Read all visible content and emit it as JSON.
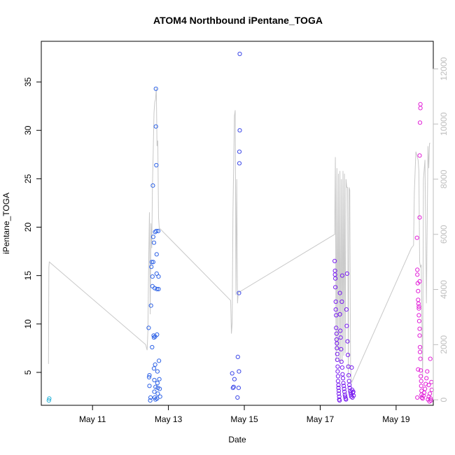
{
  "chart_data": {
    "type": "scatter",
    "title": "ATOM4 Northbound iPentane_TOGA",
    "xlabel": "Date",
    "ylabel": "iPentane_TOGA",
    "x_ticks": [
      {
        "day": 11,
        "label": "May 11"
      },
      {
        "day": 13,
        "label": "May 13"
      },
      {
        "day": 15,
        "label": "May 15"
      },
      {
        "day": 17,
        "label": "May 17"
      },
      {
        "day": 19,
        "label": "May 19"
      }
    ],
    "xlim": [
      9.65,
      19.98
    ],
    "ylim": [
      1.6,
      39.2
    ],
    "y_ticks": [
      5,
      10,
      15,
      20,
      25,
      30,
      35
    ],
    "y2lim": [
      -200,
      13000
    ],
    "y2_ticks": [
      0,
      2000,
      4000,
      6000,
      8000,
      10000,
      12000
    ],
    "y2_color": "#bebebe",
    "grid": false,
    "legend": "none",
    "series": [
      {
        "color": "#29b3d9",
        "points": [
          [
            9.85,
            2.1
          ],
          [
            9.86,
            2.3
          ]
        ]
      },
      {
        "color": "#2f63e6",
        "points": [
          [
            12.48,
            9.6
          ],
          [
            12.49,
            4.5
          ],
          [
            12.5,
            4.7
          ],
          [
            12.5,
            3.6
          ],
          [
            12.52,
            2.1
          ],
          [
            12.53,
            2.4
          ],
          [
            12.54,
            11.9
          ],
          [
            12.55,
            15.9
          ],
          [
            12.56,
            16.4
          ],
          [
            12.57,
            7.6
          ],
          [
            12.58,
            14.9
          ],
          [
            12.58,
            13.9
          ],
          [
            12.59,
            24.3
          ],
          [
            12.6,
            19.0
          ],
          [
            12.6,
            16.4
          ],
          [
            12.61,
            8.8
          ],
          [
            12.62,
            8.6
          ],
          [
            12.62,
            5.4
          ],
          [
            12.63,
            4.2
          ],
          [
            12.63,
            3.0
          ],
          [
            12.64,
            2.4
          ],
          [
            12.64,
            13.7
          ],
          [
            12.65,
            19.5
          ],
          [
            12.65,
            5.8
          ],
          [
            12.66,
            3.5
          ],
          [
            12.66,
            2.2
          ],
          [
            12.67,
            34.3
          ],
          [
            12.67,
            30.4
          ],
          [
            12.68,
            26.4
          ],
          [
            12.68,
            19.6
          ],
          [
            12.69,
            17.2
          ],
          [
            12.69,
            15.2
          ],
          [
            12.7,
            13.6
          ],
          [
            12.7,
            8.9
          ],
          [
            12.71,
            5.1
          ],
          [
            12.71,
            3.9
          ],
          [
            12.72,
            3.4
          ],
          [
            12.72,
            2.8
          ],
          [
            12.73,
            19.6
          ],
          [
            12.74,
            14.9
          ],
          [
            12.74,
            13.6
          ],
          [
            12.75,
            6.2
          ],
          [
            12.76,
            4.3
          ],
          [
            12.77,
            3.3
          ],
          [
            12.78,
            2.5
          ],
          [
            12.62,
            18.4
          ],
          [
            12.65,
            8.7
          ],
          [
            12.7,
            2.3
          ]
        ]
      },
      {
        "color": "#3d49e8",
        "points": [
          [
            14.68,
            4.9
          ],
          [
            14.7,
            3.4
          ],
          [
            14.72,
            3.5
          ],
          [
            14.74,
            4.3
          ],
          [
            14.82,
            2.4
          ],
          [
            14.83,
            6.6
          ],
          [
            14.85,
            3.4
          ],
          [
            14.86,
            5.1
          ],
          [
            14.86,
            13.2
          ],
          [
            14.87,
            26.6
          ],
          [
            14.87,
            27.8
          ],
          [
            14.88,
            30.0
          ],
          [
            14.88,
            37.9
          ]
        ]
      },
      {
        "color": "#7a1ef0",
        "points": [
          [
            17.38,
            16.5
          ],
          [
            17.39,
            15.5
          ],
          [
            17.39,
            15.1
          ],
          [
            17.4,
            14.7
          ],
          [
            17.4,
            13.8
          ],
          [
            17.41,
            12.3
          ],
          [
            17.41,
            11.5
          ],
          [
            17.42,
            10.9
          ],
          [
            17.42,
            9.6
          ],
          [
            17.43,
            9.0
          ],
          [
            17.43,
            8.4
          ],
          [
            17.44,
            8.0
          ],
          [
            17.44,
            7.5
          ],
          [
            17.45,
            6.9
          ],
          [
            17.45,
            6.3
          ],
          [
            17.46,
            5.6
          ],
          [
            17.46,
            5.1
          ],
          [
            17.47,
            4.6
          ],
          [
            17.47,
            4.1
          ],
          [
            17.48,
            3.7
          ],
          [
            17.48,
            3.4
          ],
          [
            17.49,
            3.1
          ],
          [
            17.49,
            2.8
          ],
          [
            17.5,
            2.5
          ],
          [
            17.5,
            2.2
          ],
          [
            17.51,
            2.1
          ],
          [
            17.52,
            13.2
          ],
          [
            17.52,
            11.0
          ],
          [
            17.53,
            9.3
          ],
          [
            17.54,
            8.6
          ],
          [
            17.55,
            7.4
          ],
          [
            17.56,
            6.1
          ],
          [
            17.57,
            12.3
          ],
          [
            17.58,
            15.0
          ],
          [
            17.58,
            5.5
          ],
          [
            17.59,
            4.8
          ],
          [
            17.6,
            4.4
          ],
          [
            17.61,
            3.9
          ],
          [
            17.62,
            3.6
          ],
          [
            17.63,
            3.3
          ],
          [
            17.64,
            3.0
          ],
          [
            17.65,
            2.7
          ],
          [
            17.66,
            2.5
          ],
          [
            17.67,
            2.3
          ],
          [
            17.68,
            2.2
          ],
          [
            17.69,
            11.5
          ],
          [
            17.7,
            9.8
          ],
          [
            17.71,
            15.2
          ],
          [
            17.72,
            8.2
          ],
          [
            17.73,
            6.8
          ],
          [
            17.74,
            5.6
          ],
          [
            17.75,
            4.7
          ],
          [
            17.76,
            4.1
          ],
          [
            17.77,
            3.7
          ],
          [
            17.78,
            3.4
          ],
          [
            17.79,
            3.1
          ],
          [
            17.8,
            2.9
          ],
          [
            17.81,
            2.7
          ],
          [
            17.82,
            2.5
          ],
          [
            17.83,
            5.5
          ],
          [
            17.84,
            3.2
          ],
          [
            17.85,
            2.4
          ],
          [
            17.86,
            2.9
          ],
          [
            17.87,
            3.0
          ],
          [
            17.88,
            2.6
          ]
        ]
      },
      {
        "color": "#e221d8",
        "points": [
          [
            19.55,
            18.9
          ],
          [
            19.56,
            15.6
          ],
          [
            19.56,
            15.1
          ],
          [
            19.57,
            14.2
          ],
          [
            19.58,
            13.4
          ],
          [
            19.58,
            12.5
          ],
          [
            19.59,
            12.1
          ],
          [
            19.6,
            11.6
          ],
          [
            19.6,
            10.9
          ],
          [
            19.61,
            10.3
          ],
          [
            19.62,
            9.5
          ],
          [
            19.62,
            8.8
          ],
          [
            19.63,
            7.6
          ],
          [
            19.63,
            7.1
          ],
          [
            19.64,
            6.4
          ],
          [
            19.65,
            5.2
          ],
          [
            19.65,
            4.6
          ],
          [
            19.66,
            4.1
          ],
          [
            19.66,
            3.6
          ],
          [
            19.67,
            3.1
          ],
          [
            19.67,
            2.7
          ],
          [
            19.68,
            2.4
          ],
          [
            19.62,
            21.0
          ],
          [
            19.62,
            27.4
          ],
          [
            19.63,
            30.8
          ],
          [
            19.64,
            32.3
          ],
          [
            19.64,
            32.7
          ],
          [
            19.7,
            2.3
          ],
          [
            19.72,
            2.6
          ],
          [
            19.74,
            2.9
          ],
          [
            19.76,
            3.3
          ],
          [
            19.78,
            3.8
          ],
          [
            19.8,
            4.4
          ],
          [
            19.82,
            5.1
          ],
          [
            19.84,
            2.2
          ],
          [
            19.86,
            2.5
          ],
          [
            19.86,
            3.7
          ],
          [
            19.88,
            2.0
          ],
          [
            19.89,
            2.8
          ],
          [
            19.9,
            6.4
          ],
          [
            19.91,
            2.3
          ],
          [
            19.92,
            2.1
          ],
          [
            19.93,
            4.0
          ],
          [
            19.94,
            3.2
          ],
          [
            19.56,
            2.4
          ],
          [
            19.58,
            5.3
          ],
          [
            19.6,
            11.8
          ],
          [
            19.62,
            14.4
          ]
        ]
      }
    ],
    "altitude_line": {
      "color": "#c8c8c8",
      "axis": "right",
      "points": [
        [
          9.84,
          1300
        ],
        [
          9.85,
          4800
        ],
        [
          9.86,
          5000
        ],
        [
          12.4,
          2000
        ],
        [
          12.44,
          1800
        ],
        [
          12.46,
          2500
        ],
        [
          12.48,
          5000
        ],
        [
          12.5,
          6800
        ],
        [
          12.52,
          3100
        ],
        [
          12.54,
          6400
        ],
        [
          12.56,
          5500
        ],
        [
          12.58,
          7800
        ],
        [
          12.6,
          9000
        ],
        [
          12.62,
          10400
        ],
        [
          12.64,
          10800
        ],
        [
          12.66,
          10900
        ],
        [
          12.68,
          11300
        ],
        [
          12.7,
          9200
        ],
        [
          12.72,
          9400
        ],
        [
          12.74,
          6600
        ],
        [
          12.76,
          6200
        ],
        [
          12.78,
          6200
        ],
        [
          14.64,
          3600
        ],
        [
          14.66,
          2400
        ],
        [
          14.68,
          2800
        ],
        [
          14.7,
          6800
        ],
        [
          14.74,
          10300
        ],
        [
          14.76,
          10500
        ],
        [
          14.78,
          3800
        ],
        [
          14.8,
          8000
        ],
        [
          14.82,
          3500
        ],
        [
          14.84,
          3900
        ],
        [
          14.86,
          3900
        ],
        [
          17.38,
          6000
        ],
        [
          17.4,
          8800
        ],
        [
          17.42,
          1400
        ],
        [
          17.44,
          8400
        ],
        [
          17.46,
          1800
        ],
        [
          17.48,
          8200
        ],
        [
          17.5,
          1400
        ],
        [
          17.52,
          8300
        ],
        [
          17.54,
          1300
        ],
        [
          17.56,
          8000
        ],
        [
          17.58,
          1400
        ],
        [
          17.6,
          8300
        ],
        [
          17.62,
          1600
        ],
        [
          17.64,
          8200
        ],
        [
          17.66,
          1700
        ],
        [
          17.68,
          8000
        ],
        [
          17.7,
          7700
        ],
        [
          17.72,
          7700
        ],
        [
          17.74,
          800
        ],
        [
          17.76,
          7700
        ],
        [
          17.78,
          7600
        ],
        [
          17.8,
          1300
        ],
        [
          17.82,
          600
        ],
        [
          19.4,
          5500
        ],
        [
          19.46,
          5600
        ],
        [
          19.48,
          7500
        ],
        [
          19.52,
          9000
        ],
        [
          19.56,
          8800
        ],
        [
          19.58,
          8700
        ],
        [
          19.6,
          8300
        ],
        [
          19.62,
          5000
        ],
        [
          19.64,
          4800
        ],
        [
          19.66,
          4900
        ],
        [
          19.7,
          800
        ],
        [
          19.72,
          8000
        ],
        [
          19.76,
          8700
        ],
        [
          19.8,
          3500
        ],
        [
          19.84,
          9200
        ],
        [
          19.86,
          8400
        ],
        [
          19.88,
          9300
        ],
        [
          19.9,
          9300
        ]
      ]
    }
  }
}
